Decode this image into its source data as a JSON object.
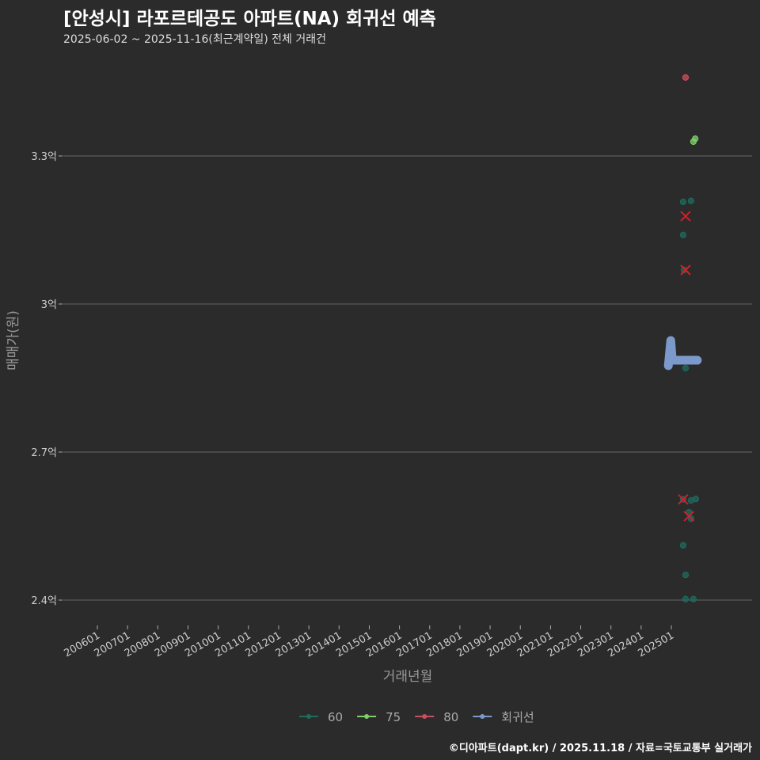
{
  "header": {
    "title": "[안성시] 라포르테공도 아파트(NA) 회귀선 예측",
    "subtitle": "2025-06-02 ~ 2025-11-16(최근계약일) 전체 거래건"
  },
  "footer": "©디아파트(dapt.kr) / 2025.11.18 / 자료=국토교통부 실거래가",
  "chart_data": {
    "type": "scatter",
    "title": "[안성시] 라포르테공도 아파트(NA) 회귀선 예측",
    "xlabel": "거래년월",
    "ylabel": "매매가(원)",
    "xlim": [
      2005.0,
      2028.0
    ],
    "ylim": [
      2.3,
      3.56
    ],
    "yticks": [
      {
        "v": 2.4,
        "label": "2.4억"
      },
      {
        "v": 2.7,
        "label": "2.7억"
      },
      {
        "v": 3.0,
        "label": "3억"
      },
      {
        "v": 3.3,
        "label": "3.3억"
      }
    ],
    "xticks": [
      "200601",
      "200701",
      "200801",
      "200901",
      "201001",
      "201101",
      "201201",
      "201301",
      "201401",
      "201501",
      "201601",
      "201701",
      "201801",
      "201901",
      "202001",
      "202101",
      "202201",
      "202301",
      "202401",
      "202501"
    ],
    "legend_position": "bottom",
    "series": [
      {
        "name": "60",
        "color": "#1f6b5e",
        "points": [
          [
            2025.39,
            3.207
          ],
          [
            2025.65,
            3.209
          ],
          [
            2025.39,
            3.14
          ],
          [
            2025.42,
            3.069
          ],
          [
            2025.47,
            2.87
          ],
          [
            2025.39,
            2.604
          ],
          [
            2025.65,
            2.602
          ],
          [
            2025.81,
            2.605
          ],
          [
            2025.58,
            2.578
          ],
          [
            2025.65,
            2.565
          ],
          [
            2025.39,
            2.511
          ],
          [
            2025.47,
            2.451
          ],
          [
            2025.47,
            2.402
          ],
          [
            2025.73,
            2.402
          ]
        ]
      },
      {
        "name": "75",
        "color": "#7fcf6a",
        "points": [
          [
            2025.79,
            3.335
          ],
          [
            2025.73,
            3.329
          ]
        ]
      },
      {
        "name": "80",
        "color": "#c8505e",
        "points": [
          [
            2025.47,
            3.459
          ]
        ]
      },
      {
        "name": "회귀선",
        "color": "#7b9acb",
        "points": [
          [
            2024.9,
            2.875
          ],
          [
            2024.98,
            2.926
          ],
          [
            2025.03,
            2.886
          ],
          [
            2025.86,
            2.886
          ]
        ]
      }
    ],
    "cancelled_marks": [
      [
        2025.47,
        3.178
      ],
      [
        2025.47,
        3.069
      ],
      [
        2025.39,
        2.604
      ],
      [
        2025.58,
        2.57
      ]
    ]
  }
}
